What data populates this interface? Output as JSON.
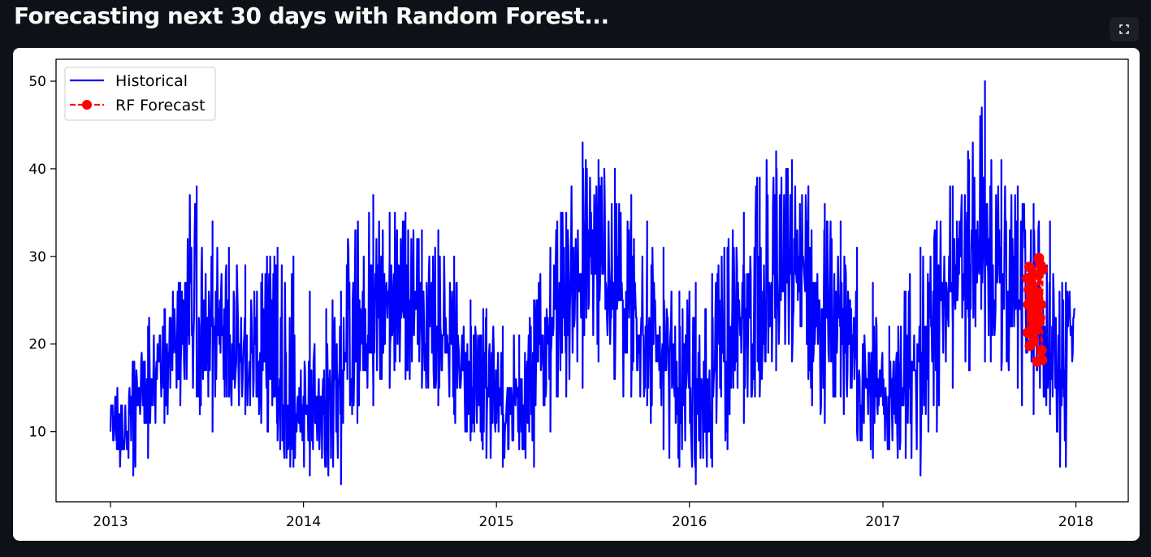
{
  "header": {
    "title": "Forecasting next 30 days with Random Forest..."
  },
  "toolbar": {
    "fullscreen_icon": "expand-icon"
  },
  "chart_data": {
    "type": "line",
    "title": "",
    "xlabel": "",
    "ylabel": "",
    "x_type": "date",
    "xlim": [
      "2012-09-20",
      "2018-04-10"
    ],
    "ylim": [
      2,
      52.5
    ],
    "x_ticks": [
      "2013-01-01",
      "2014-01-01",
      "2015-01-01",
      "2016-01-01",
      "2017-01-01",
      "2018-01-01"
    ],
    "x_tick_labels": [
      "2013",
      "2014",
      "2015",
      "2016",
      "2017",
      "2018"
    ],
    "y_ticks": [
      10,
      20,
      30,
      40,
      50
    ],
    "y_tick_labels": [
      "10",
      "20",
      "30",
      "40",
      "50"
    ],
    "grid": false,
    "legend": {
      "position": "top-left",
      "entries": [
        "Historical",
        "RF Forecast"
      ]
    },
    "series": [
      {
        "name": "Historical",
        "style": "solid",
        "color": "#0000ff",
        "x": [
          "2013-01-01",
          "2013-02-01",
          "2013-03-01",
          "2013-04-01",
          "2013-05-01",
          "2013-06-01",
          "2013-07-01",
          "2013-08-01",
          "2013-09-01",
          "2013-10-01",
          "2013-11-01",
          "2013-12-01",
          "2014-01-01",
          "2014-02-01",
          "2014-03-01",
          "2014-04-01",
          "2014-05-01",
          "2014-06-01",
          "2014-07-01",
          "2014-08-01",
          "2014-09-01",
          "2014-10-01",
          "2014-11-01",
          "2014-12-01",
          "2015-01-01",
          "2015-02-01",
          "2015-03-01",
          "2015-04-01",
          "2015-05-01",
          "2015-06-01",
          "2015-07-01",
          "2015-08-01",
          "2015-09-01",
          "2015-10-01",
          "2015-11-01",
          "2015-12-01",
          "2016-01-01",
          "2016-02-01",
          "2016-03-01",
          "2016-04-01",
          "2016-05-01",
          "2016-06-01",
          "2016-07-01",
          "2016-08-01",
          "2016-09-01",
          "2016-10-01",
          "2016-11-01",
          "2016-12-01",
          "2017-01-01",
          "2017-02-01",
          "2017-03-01",
          "2017-04-01",
          "2017-05-01",
          "2017-06-01",
          "2017-07-01",
          "2017-08-01",
          "2017-09-01",
          "2017-10-01",
          "2017-11-01",
          "2017-12-01",
          "2017-12-31"
        ],
        "values": [
          12,
          11,
          14,
          17,
          19,
          22,
          23,
          22,
          20,
          19,
          17,
          13,
          12,
          14,
          15,
          19,
          21,
          25,
          27,
          24,
          22,
          21,
          19,
          15,
          14,
          14,
          17,
          21,
          24,
          27,
          29,
          27,
          24,
          22,
          19,
          15,
          15,
          15,
          18,
          22,
          24,
          27,
          28,
          27,
          24,
          22,
          19,
          16,
          14,
          15,
          17,
          22,
          26,
          28,
          31,
          28,
          26,
          23,
          21,
          15,
          24
        ],
        "min": [
          8,
          5,
          7,
          11,
          13,
          14,
          10,
          14,
          12,
          11,
          9,
          6,
          5,
          6,
          4,
          11,
          13,
          15,
          16,
          15,
          13,
          12,
          10,
          7,
          6,
          8,
          6,
          10,
          14,
          15,
          18,
          16,
          14,
          13,
          8,
          6,
          4,
          6,
          8,
          11,
          14,
          17,
          18,
          16,
          11,
          14,
          10,
          7,
          8,
          7,
          5,
          10,
          15,
          17,
          18,
          17,
          15,
          12,
          13,
          6,
          15
        ],
        "max": [
          14,
          18,
          22,
          24,
          27,
          38,
          34,
          31,
          29,
          27,
          31,
          30,
          26,
          24,
          26,
          33,
          37,
          35,
          35,
          33,
          33,
          30,
          25,
          24,
          22,
          21,
          25,
          30,
          35,
          43,
          41,
          40,
          37,
          34,
          31,
          26,
          27,
          28,
          31,
          35,
          39,
          42,
          41,
          38,
          36,
          34,
          31,
          27,
          22,
          26,
          31,
          34,
          38,
          41,
          50,
          41,
          38,
          36,
          34,
          27,
          27
        ]
      },
      {
        "name": "RF Forecast",
        "style": "dashed-markers",
        "color": "#ff0000",
        "x": [
          "2017-10-01",
          "2017-10-02",
          "2017-10-03",
          "2017-10-04",
          "2017-10-05",
          "2017-10-06",
          "2017-10-07",
          "2017-10-08",
          "2017-10-09",
          "2017-10-10",
          "2017-10-11",
          "2017-10-12",
          "2017-10-13",
          "2017-10-14",
          "2017-10-15",
          "2017-10-16",
          "2017-10-17",
          "2017-10-18",
          "2017-10-19",
          "2017-10-20",
          "2017-10-21",
          "2017-10-22",
          "2017-10-23",
          "2017-10-24",
          "2017-10-25",
          "2017-10-26",
          "2017-10-27",
          "2017-10-28",
          "2017-10-29",
          "2017-10-30"
        ],
        "values": [
          27.5,
          21.3,
          24.5,
          26.2,
          28.8,
          19.8,
          25.0,
          27.4,
          23.1,
          26.8,
          24.0,
          28.1,
          20.4,
          25.5,
          22.3,
          26.0,
          24.8,
          21.6,
          23.9,
          18.0,
          25.6,
          27.9,
          29.8,
          22.5,
          23.0,
          29.0,
          24.5,
          19.3,
          18.2,
          28.5
        ]
      }
    ]
  }
}
